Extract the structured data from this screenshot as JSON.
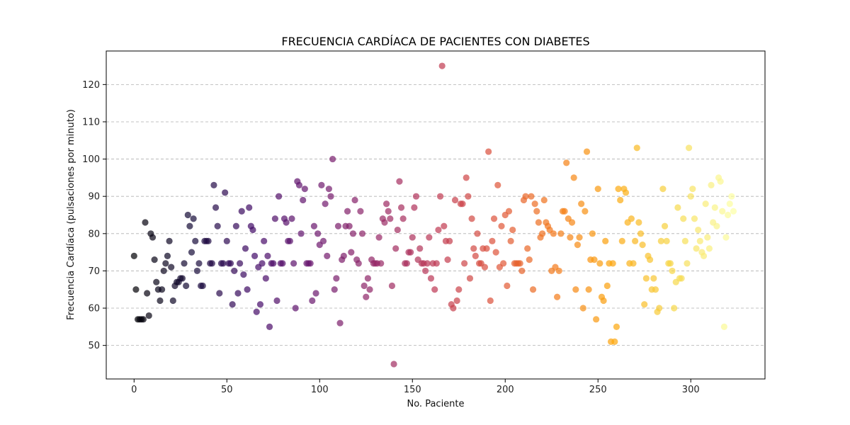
{
  "chart_data": {
    "type": "scatter",
    "title": "FRECUENCIA CARDÍACA DE PACIENTES CON DIABETES",
    "xlabel": "No. Paciente",
    "ylabel": "Frecuencia Cardíaca (pulsaciones por minuto)",
    "xlim": [
      -15,
      340
    ],
    "ylim": [
      41,
      129
    ],
    "xticks": [
      0,
      50,
      100,
      150,
      200,
      250,
      300
    ],
    "yticks": [
      50,
      60,
      70,
      80,
      90,
      100,
      110,
      120
    ],
    "grid_y": true,
    "colormap": "inferno",
    "point_alpha": 0.7,
    "y": [
      74,
      65,
      57,
      57,
      57,
      57,
      83,
      64,
      58,
      80,
      79,
      73,
      67,
      65,
      62,
      65,
      70,
      72,
      74,
      78,
      71,
      62,
      66,
      67,
      67,
      68,
      68,
      72,
      66,
      85,
      82,
      75,
      84,
      78,
      70,
      72,
      66,
      66,
      78,
      78,
      78,
      72,
      72,
      93,
      87,
      82,
      64,
      72,
      72,
      91,
      78,
      72,
      72,
      61,
      70,
      82,
      64,
      72,
      86,
      69,
      76,
      65,
      87,
      82,
      81,
      74,
      59,
      71,
      61,
      72,
      78,
      68,
      74,
      55,
      72,
      72,
      84,
      62,
      90,
      72,
      72,
      84,
      83,
      78,
      78,
      84,
      72,
      60,
      94,
      93,
      80,
      89,
      92,
      72,
      72,
      72,
      62,
      82,
      64,
      80,
      77,
      93,
      78,
      88,
      74,
      92,
      90,
      100,
      65,
      68,
      82,
      56,
      73,
      74,
      82,
      86,
      82,
      75,
      80,
      89,
      73,
      72,
      86,
      80,
      66,
      63,
      68,
      65,
      73,
      72,
      72,
      72,
      79,
      72,
      84,
      83,
      88,
      86,
      84,
      66,
      45,
      76,
      81,
      94,
      87,
      84,
      72,
      72,
      75,
      75,
      79,
      87,
      90,
      73,
      76,
      72,
      72,
      70,
      72,
      79,
      68,
      72,
      65,
      72,
      81,
      90,
      125,
      82,
      78,
      73,
      78,
      61,
      60,
      89,
      62,
      65,
      88,
      88,
      72,
      95,
      90,
      68,
      84,
      76,
      74,
      80,
      72,
      72,
      76,
      71,
      76,
      102,
      62,
      78,
      84,
      75,
      93,
      71,
      82,
      72,
      85,
      66,
      86,
      78,
      81,
      72,
      72,
      72,
      72,
      70,
      89,
      90,
      76,
      73,
      90,
      65,
      88,
      86,
      83,
      79,
      80,
      89,
      83,
      82,
      81,
      70,
      80,
      71,
      63,
      70,
      80,
      86,
      86,
      99,
      84,
      79,
      83,
      95,
      65,
      77,
      79,
      88,
      60,
      86,
      102,
      65,
      73,
      80,
      73,
      57,
      92,
      72,
      63,
      62,
      78,
      66,
      72,
      51,
      72,
      51,
      55,
      92,
      89,
      78,
      92,
      91,
      83,
      72,
      84,
      72,
      78,
      103,
      83,
      80,
      77,
      61,
      68,
      74,
      73,
      65,
      68,
      65,
      59,
      60,
      78,
      92,
      82,
      78,
      72,
      72,
      70,
      60,
      67,
      87,
      68,
      68,
      84,
      78,
      72,
      103,
      90,
      92,
      84,
      76,
      81,
      78,
      75,
      74,
      88,
      79,
      76,
      93,
      83,
      87,
      82,
      95,
      94,
      86,
      55,
      79,
      85,
      88,
      90,
      86
    ]
  }
}
